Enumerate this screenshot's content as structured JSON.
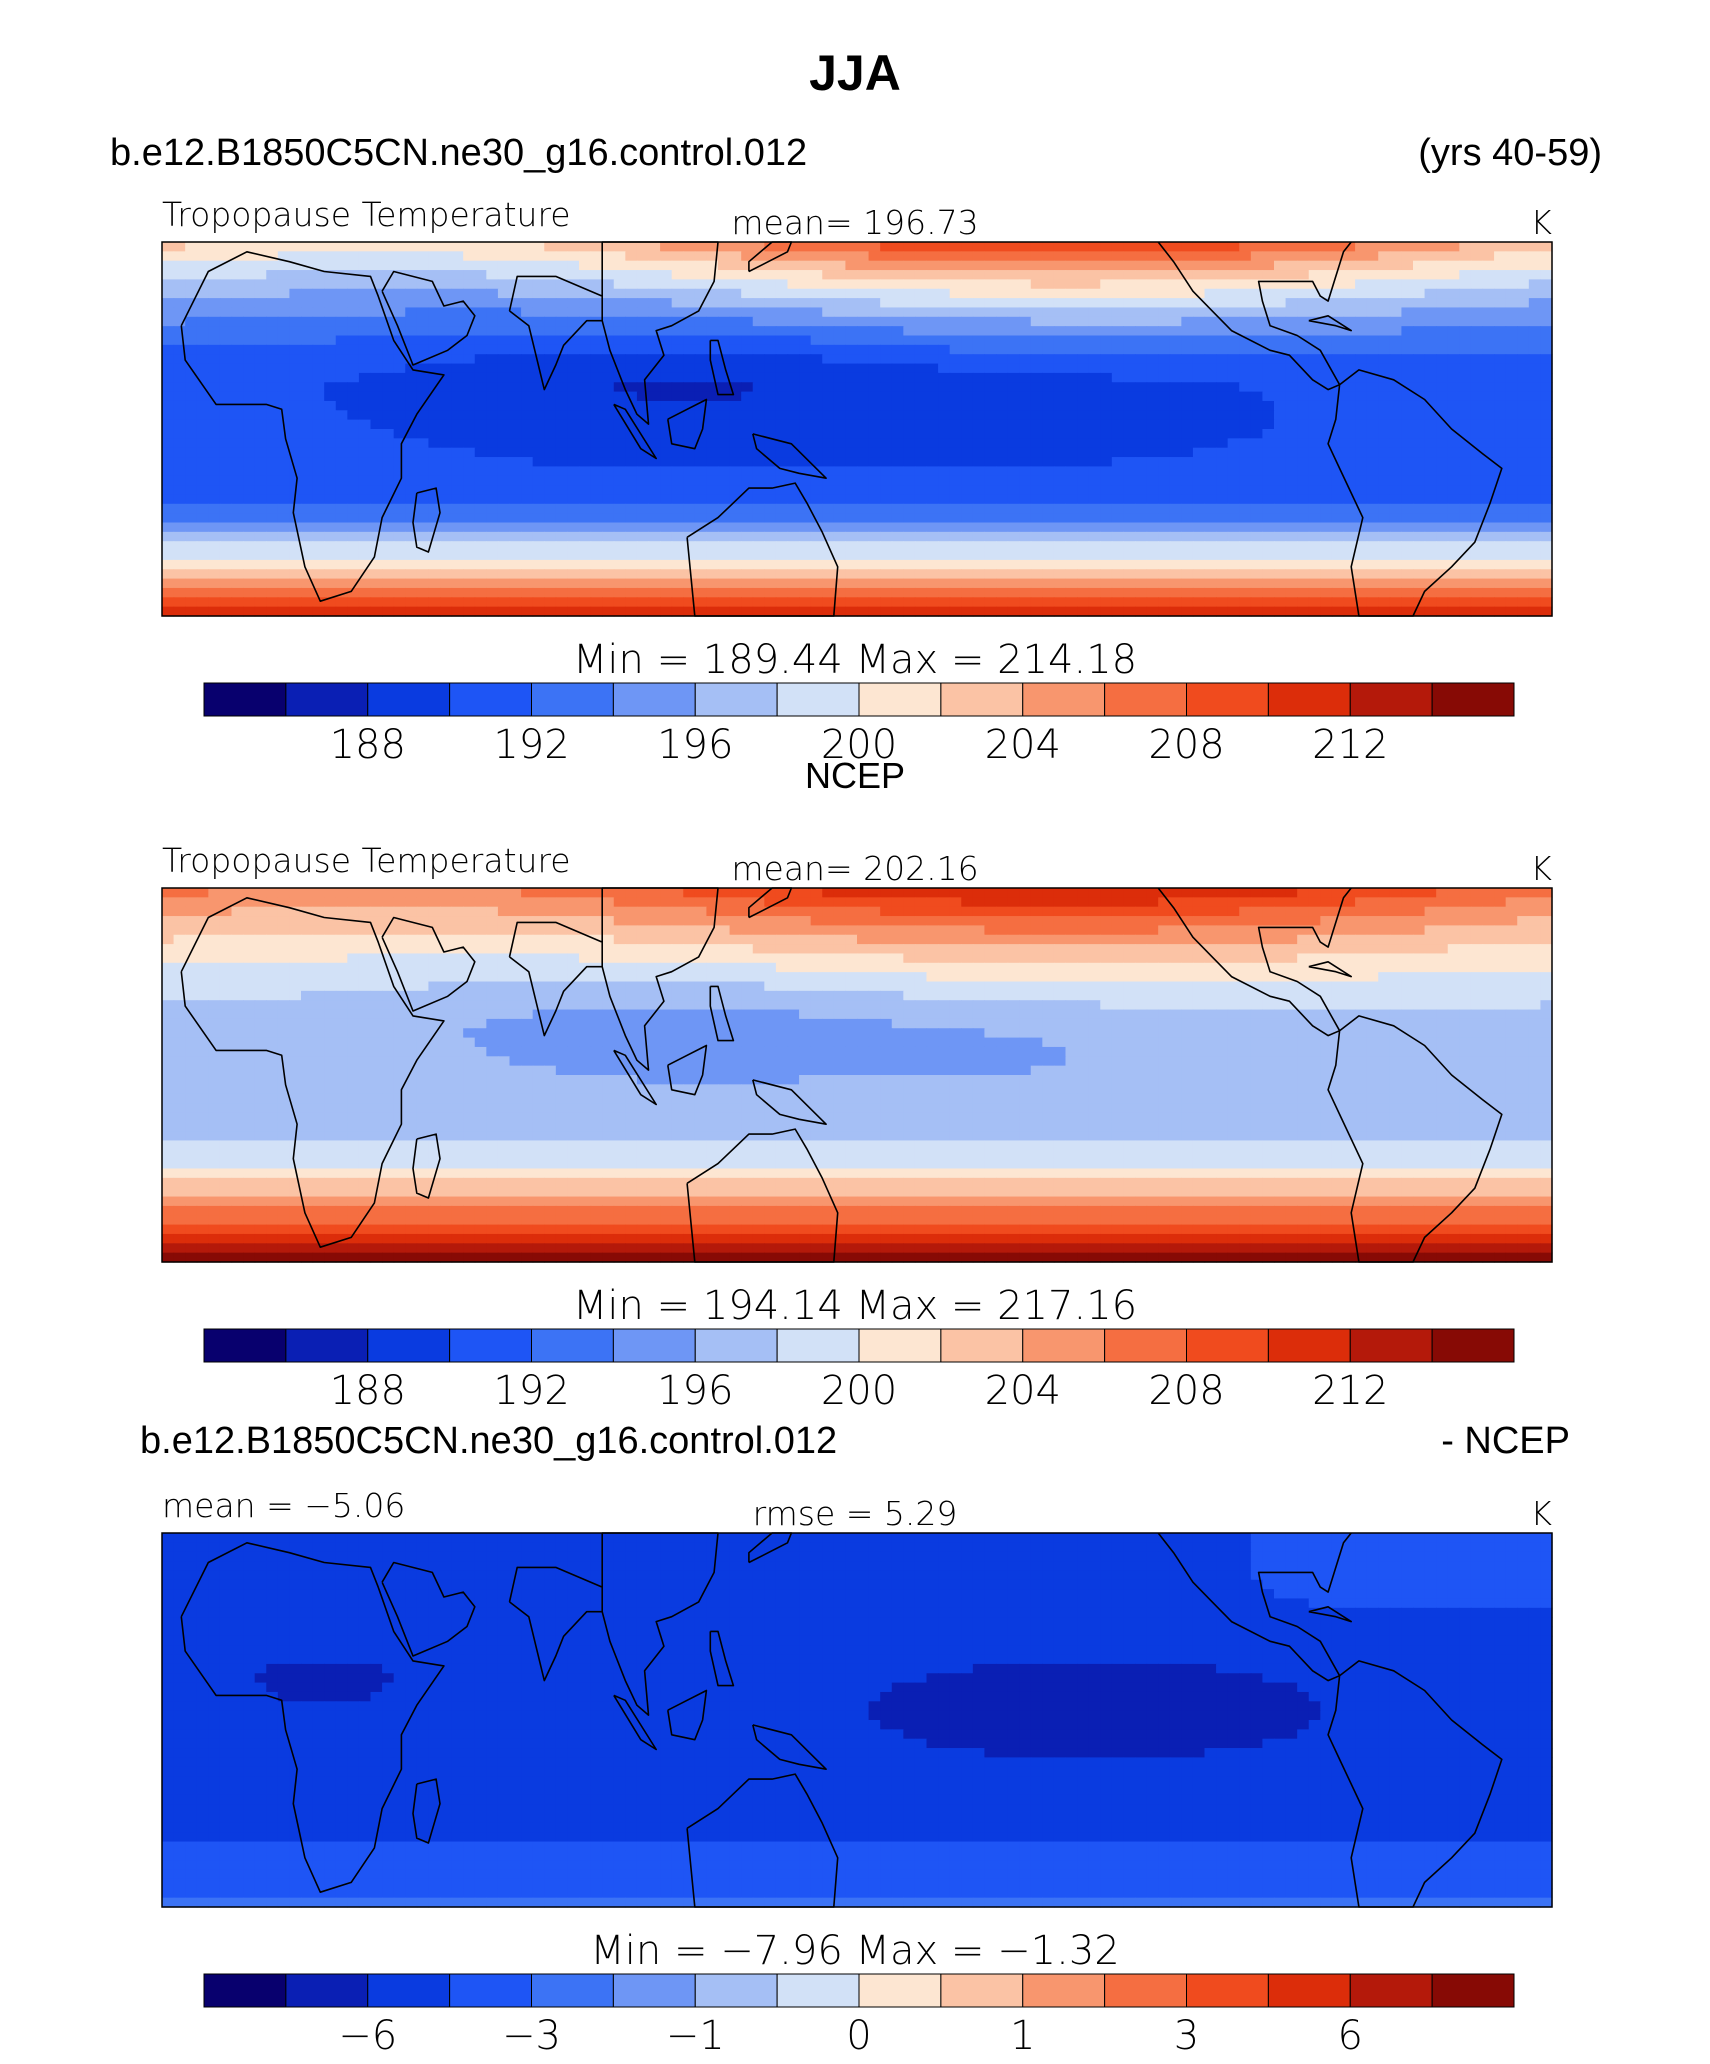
{
  "title": "JJA",
  "case_name": "b.e12.B1850C5CN.ne30_g16.control.012",
  "years": "(yrs 40-59)",
  "panels": [
    {
      "id": "model",
      "left_label": "Tropopause  Temperature",
      "center_label": "mean=  196.73",
      "units": "K",
      "minmax": "Min  =  189.44  Max  =  214.18",
      "colorbar_labels": [
        "188",
        "192",
        "196",
        "200",
        "204",
        "208",
        "212"
      ],
      "field": {
        "eq": 190.5,
        "low_lat_mod": 1.2,
        "north_amp": 18,
        "south_amp": 22,
        "min": 189.44,
        "max": 214.18
      }
    },
    {
      "id": "obs",
      "header": "NCEP",
      "left_label": "Tropopause  Temperature",
      "center_label": "mean=  202.16",
      "units": "K",
      "minmax": "Min  =  194.14  Max  =  217.16",
      "colorbar_labels": [
        "188",
        "192",
        "196",
        "200",
        "204",
        "208",
        "212"
      ],
      "field": {
        "eq": 197.2,
        "low_lat_mod": 1.0,
        "north_amp": 14,
        "south_amp": 18,
        "min": 194.14,
        "max": 217.16
      }
    },
    {
      "id": "diff",
      "header_left": "b.e12.B1850C5CN.ne30_g16.control.012",
      "header_right": "- NCEP",
      "left_label": "mean =   −5.06",
      "center_label": "rmse =      5.29",
      "units": "K",
      "minmax": "Min  =   −7.96  Max  =   −1.32",
      "colorbar_labels": [
        "−6",
        "−3",
        "−1",
        "0",
        "1",
        "3",
        "6"
      ],
      "field": {
        "min": -7.96,
        "max": -1.32
      }
    }
  ],
  "colors": {
    "palette": [
      "#08006e",
      "#0a1fb4",
      "#0a3be0",
      "#1e55f5",
      "#3c73f5",
      "#6e96f5",
      "#a5bff5",
      "#d2e1f7",
      "#fde6d2",
      "#fbc3a5",
      "#f8966e",
      "#f56e41",
      "#f04b1e",
      "#dc2d0a",
      "#b4190a",
      "#870a05"
    ]
  }
}
